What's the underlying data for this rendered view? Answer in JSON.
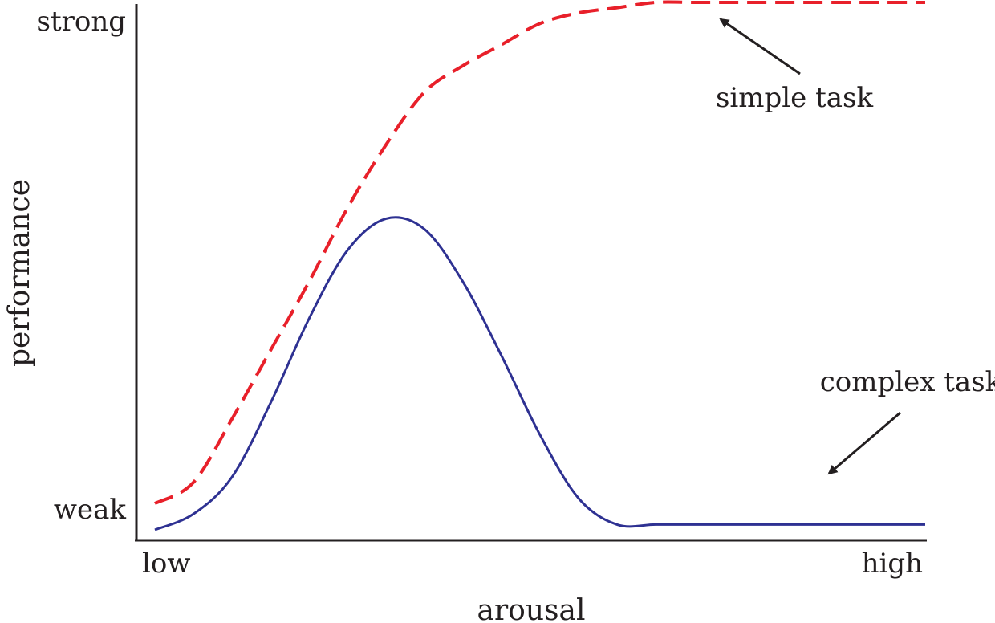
{
  "chart_data": {
    "type": "line",
    "title": "",
    "xlabel": "arousal",
    "ylabel": "performance",
    "x_ticks": [
      "low",
      "high"
    ],
    "y_ticks": [
      "weak",
      "strong"
    ],
    "xlim": [
      0,
      100
    ],
    "ylim": [
      0,
      100
    ],
    "grid": false,
    "legend": "none",
    "x": [
      0,
      5,
      10,
      15,
      20,
      25,
      30,
      35,
      40,
      45,
      50,
      55,
      60,
      65,
      70,
      75,
      80,
      85,
      90,
      95,
      100
    ],
    "series": [
      {
        "name": "simple task",
        "style": "dashed",
        "color": "#e8202a",
        "values": [
          5,
          9,
          21,
          34,
          47,
          61,
          73,
          83,
          88,
          92,
          96,
          98,
          99,
          100,
          100,
          100,
          100,
          100,
          100,
          100,
          100
        ]
      },
      {
        "name": "complex task",
        "style": "solid",
        "color": "#2e3192",
        "values": [
          0,
          3,
          10,
          24,
          40,
          53,
          59,
          57,
          47,
          33,
          18,
          6,
          1,
          1,
          1,
          1,
          1,
          1,
          1,
          1,
          1
        ]
      }
    ],
    "annotations": [
      {
        "text": "simple task",
        "target_series": 0,
        "target_x": 73
      },
      {
        "text": "complex task",
        "target_series": 1,
        "target_x": 87
      }
    ]
  }
}
